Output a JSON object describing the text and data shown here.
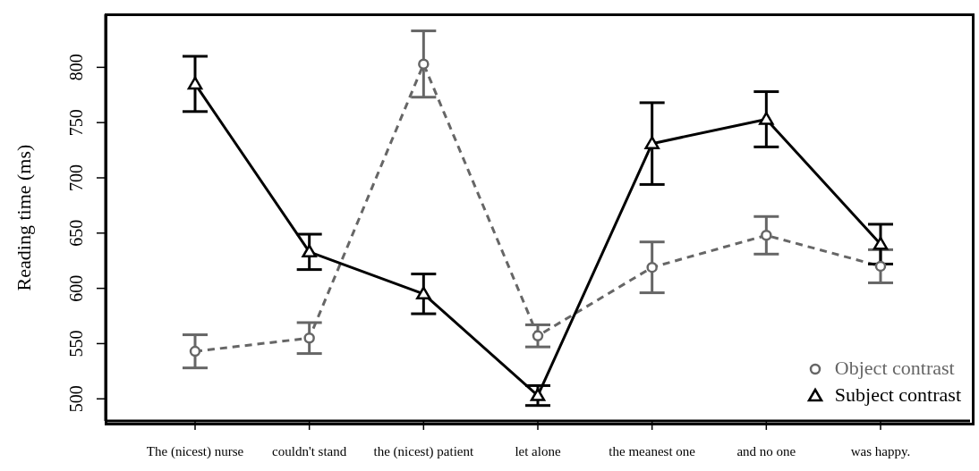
{
  "chart_data": {
    "type": "line",
    "ylabel": "Reading time (ms)",
    "categories": [
      "The (nicest) nurse",
      "couldn't stand",
      "the (nicest) patient",
      "let alone",
      "the meanest one",
      "and no one",
      "was happy."
    ],
    "series": [
      {
        "name": "Object contrast",
        "color": "#666666",
        "marker": "circle",
        "line_style": "dashed",
        "values": [
          543,
          555,
          803,
          557,
          619,
          648,
          620
        ],
        "errors": [
          15,
          14,
          30,
          10,
          23,
          17,
          15
        ]
      },
      {
        "name": "Subject contrast",
        "color": "#000000",
        "marker": "triangle",
        "line_style": "solid",
        "values": [
          785,
          633,
          595,
          503,
          731,
          753,
          640
        ],
        "errors": [
          25,
          16,
          18,
          9,
          37,
          25,
          18
        ]
      }
    ],
    "ylim": [
      480,
      848
    ],
    "yticks": [
      500,
      550,
      600,
      650,
      700,
      750,
      800
    ],
    "grid": false,
    "legend": "bottom right"
  }
}
